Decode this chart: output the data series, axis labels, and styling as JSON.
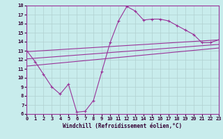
{
  "xlabel": "Windchill (Refroidissement éolien,°C)",
  "xlim": [
    0,
    23
  ],
  "ylim": [
    6,
    18
  ],
  "xticks": [
    0,
    1,
    2,
    3,
    4,
    5,
    6,
    7,
    8,
    9,
    10,
    11,
    12,
    13,
    14,
    15,
    16,
    17,
    18,
    19,
    20,
    21,
    22,
    23
  ],
  "yticks": [
    6,
    7,
    8,
    9,
    10,
    11,
    12,
    13,
    14,
    15,
    16,
    17,
    18
  ],
  "background_color": "#c8ecec",
  "grid_color": "#b0d0d0",
  "line_color": "#993399",
  "line1_x": [
    0,
    1,
    2,
    3,
    4,
    5,
    6,
    7,
    8,
    9,
    10,
    11,
    12,
    13,
    14,
    15,
    16,
    17,
    18,
    19,
    20,
    21,
    22,
    23
  ],
  "line1_y": [
    13.0,
    11.8,
    10.4,
    9.0,
    8.2,
    9.3,
    6.2,
    6.3,
    7.5,
    10.7,
    13.9,
    16.3,
    17.9,
    17.4,
    16.4,
    16.5,
    16.5,
    16.3,
    15.8,
    15.3,
    14.8,
    13.9,
    13.9,
    14.2
  ],
  "line2_x": [
    0,
    23
  ],
  "line2_y": [
    12.9,
    14.2
  ],
  "line3_x": [
    0,
    23
  ],
  "line3_y": [
    12.1,
    13.7
  ],
  "line4_x": [
    0,
    23
  ],
  "line4_y": [
    11.3,
    13.3
  ]
}
